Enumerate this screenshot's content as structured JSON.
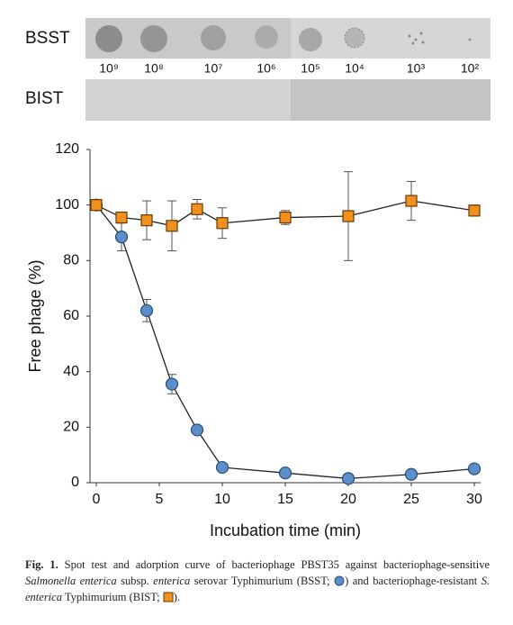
{
  "panel": {
    "rows": [
      "BSST",
      "BIST"
    ],
    "dilutions": [
      "10⁹",
      "10⁸",
      "10⁷",
      "10⁶",
      "10⁵",
      "10⁴",
      "10³",
      "10²"
    ]
  },
  "chart_data": {
    "type": "line",
    "ylabel": "Free phage (%)",
    "xlabel": "Incubation time (min)",
    "x": [
      0,
      2,
      4,
      6,
      8,
      10,
      15,
      20,
      25,
      30
    ],
    "series": [
      {
        "marker": "circle",
        "color": "#5b8fcb",
        "values": [
          100,
          88.5,
          62,
          35.5,
          19,
          5.5,
          3.5,
          1.5,
          3,
          5
        ],
        "errors": [
          0,
          5,
          4,
          3.5,
          1,
          1,
          1,
          1,
          1,
          1
        ]
      },
      {
        "marker": "square",
        "color": "#f0901e",
        "values": [
          100,
          95.5,
          94.5,
          92.5,
          98.5,
          93.5,
          95.5,
          96,
          101.5,
          98
        ],
        "errors": [
          1,
          1.5,
          7,
          9,
          3.5,
          5.5,
          2.5,
          16,
          7,
          2
        ]
      }
    ],
    "xlim": [
      -0.5,
      30.5
    ],
    "xticks": [
      0,
      5,
      10,
      15,
      20,
      25,
      30
    ],
    "ylim": [
      0,
      120
    ],
    "yticks": [
      0,
      20,
      40,
      60,
      80,
      100,
      120
    ],
    "grid": false
  },
  "caption": {
    "label": "Fig. 1.",
    "parts": [
      "Spot test and adorption curve of bacteriophage PBST35 against bacteriophage-sensitive",
      "Salmonella enterica",
      "subsp.",
      "enterica",
      "serovar Typhimurium (BSST;",
      ") and bacteriophage-resistant",
      "S. enterica",
      "Typhimurium (BIST;",
      ")."
    ]
  }
}
